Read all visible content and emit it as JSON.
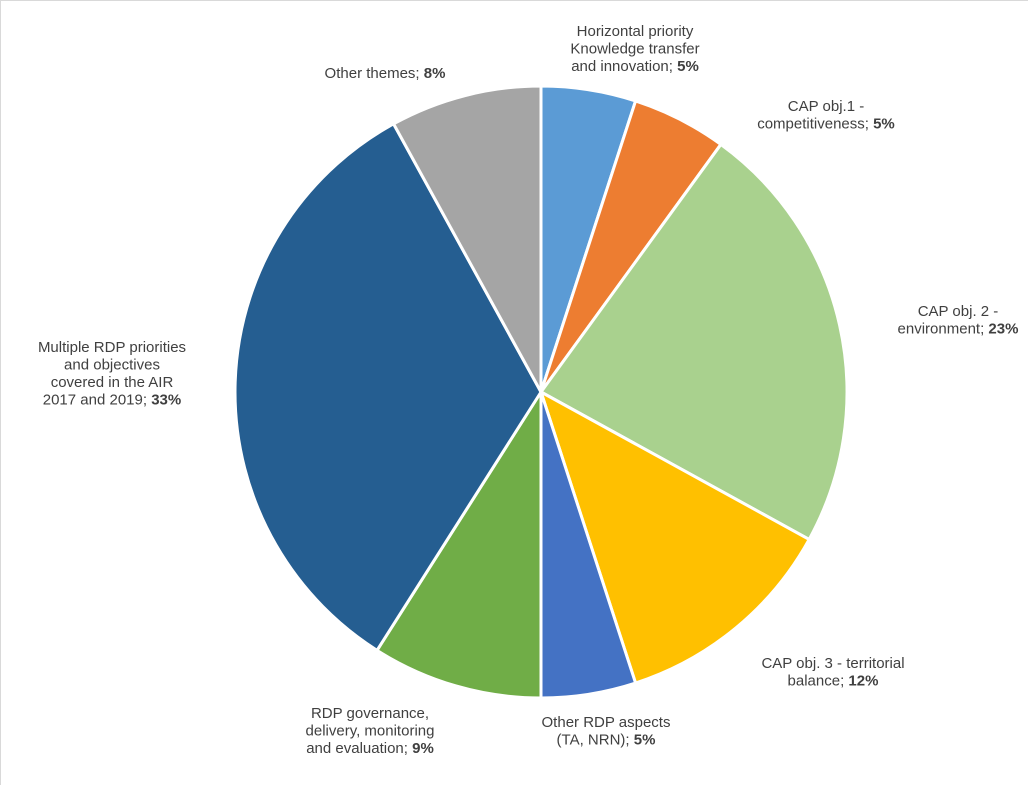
{
  "chart_data": {
    "type": "pie",
    "title": "",
    "start_angle_deg": 0,
    "direction": "clockwise",
    "slices": [
      {
        "label": "Horizontal priority Knowledge transfer and innovation",
        "value": 5,
        "value_label": "5%",
        "color": "#5b9bd5",
        "label_lines": [
          {
            "text": "Horizontal priority"
          },
          {
            "text": "Knowledge transfer"
          },
          {
            "text": "and innovation;",
            "value": "5%"
          }
        ]
      },
      {
        "label": "CAP obj.1 - competitiveness",
        "value": 5,
        "value_label": "5%",
        "color": "#ed7d31",
        "label_lines": [
          {
            "text": "CAP obj.1 -"
          },
          {
            "text": "competitiveness;",
            "value": "5%"
          }
        ]
      },
      {
        "label": "CAP obj. 2 - environment",
        "value": 23,
        "value_label": "23%",
        "color": "#a9d18e",
        "label_lines": [
          {
            "text": "CAP obj. 2 -"
          },
          {
            "text": "environment;",
            "value": "23%"
          }
        ]
      },
      {
        "label": "CAP obj. 3 - territorial balance",
        "value": 12,
        "value_label": "12%",
        "color": "#ffc000",
        "label_lines": [
          {
            "text": "CAP obj. 3 - territorial"
          },
          {
            "text": "balance;",
            "value": "12%"
          }
        ]
      },
      {
        "label": "Other RDP aspects (TA, NRN)",
        "value": 5,
        "value_label": "5%",
        "color": "#4472c4",
        "label_lines": [
          {
            "text": "Other RDP aspects"
          },
          {
            "text": "(TA, NRN);",
            "value": "5%"
          }
        ]
      },
      {
        "label": "RDP governance, delivery, monitoring and evaluation",
        "value": 9,
        "value_label": "9%",
        "color": "#70ad47",
        "label_lines": [
          {
            "text": "RDP governance,"
          },
          {
            "text": "delivery, monitoring"
          },
          {
            "text": "and evaluation;",
            "value": "9%"
          }
        ]
      },
      {
        "label": "Multiple RDP priorities and objectives covered in the AIR 2017 and 2019",
        "value": 33,
        "value_label": "33%",
        "color": "#255e91",
        "label_lines": [
          {
            "text": "Multiple RDP priorities"
          },
          {
            "text": "and objectives"
          },
          {
            "text": "covered in the AIR"
          },
          {
            "text": "2017 and 2019;",
            "value": "33%"
          }
        ]
      },
      {
        "label": "Other themes",
        "value": 8,
        "value_label": "8%",
        "color": "#a5a5a5",
        "label_lines": [
          {
            "text": "Other themes;",
            "value": "8%"
          }
        ]
      }
    ]
  }
}
